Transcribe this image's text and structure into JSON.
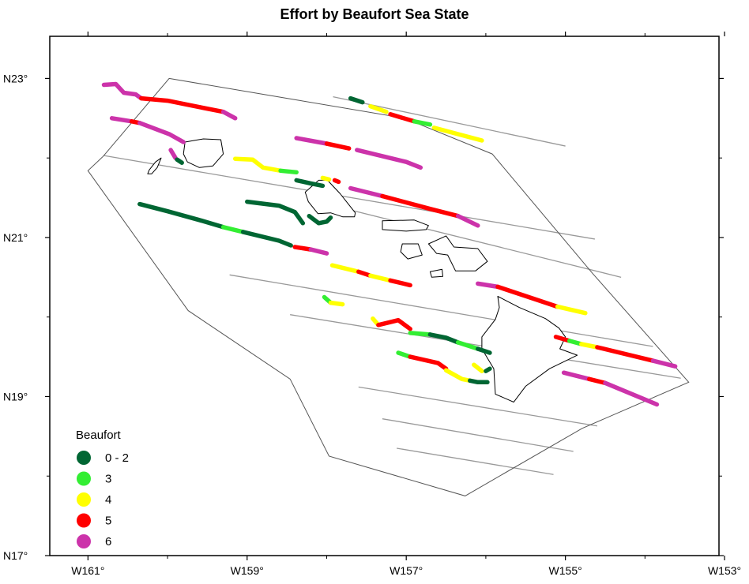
{
  "title": "Effort by Beaufort Sea State",
  "axes": {
    "x_ticks": [
      {
        "lon": -161,
        "label": "W161°"
      },
      {
        "lon": -159,
        "label": "W159°"
      },
      {
        "lon": -157,
        "label": "W157°"
      },
      {
        "lon": -155,
        "label": "W155°"
      },
      {
        "lon": -153,
        "label": "W153°"
      }
    ],
    "y_ticks": [
      {
        "lat": 23,
        "label": "N23°"
      },
      {
        "lat": 21,
        "label": "N21°"
      },
      {
        "lat": 19,
        "label": "N19°"
      },
      {
        "lat": 17,
        "label": "N17°"
      }
    ],
    "lon_range": [
      -161.48,
      -153.07
    ],
    "lat_range": [
      17,
      23.53
    ]
  },
  "legend": {
    "title": "Beaufort",
    "items": [
      {
        "label": "0 - 2",
        "color": "#006633"
      },
      {
        "label": "3",
        "color": "#33ee33"
      },
      {
        "label": "4",
        "color": "#ffff00"
      },
      {
        "label": "5",
        "color": "#ff0000"
      },
      {
        "label": "6",
        "color": "#cc33aa"
      }
    ]
  },
  "colors": {
    "frame": "#000000",
    "transect": "#999999",
    "coast": "#000000",
    "study_area": "#555555"
  },
  "study_area": [
    [
      -159.98,
      23.0
    ],
    [
      -157.02,
      22.5
    ],
    [
      -155.92,
      22.05
    ],
    [
      -154.66,
      20.55
    ],
    [
      -153.45,
      19.18
    ],
    [
      -154.79,
      18.6
    ],
    [
      -156.26,
      17.75
    ],
    [
      -157.97,
      18.25
    ],
    [
      -158.46,
      19.22
    ],
    [
      -159.74,
      20.08
    ],
    [
      -161.0,
      21.84
    ],
    [
      -160.81,
      22.02
    ]
  ],
  "transects": [
    [
      [
        -157.92,
        22.77
      ],
      [
        -155.0,
        22.15
      ]
    ],
    [
      [
        -160.8,
        22.03
      ],
      [
        -154.63,
        20.98
      ]
    ],
    [
      [
        -157.84,
        21.38
      ],
      [
        -154.3,
        20.5
      ]
    ],
    [
      [
        -159.22,
        20.53
      ],
      [
        -153.9,
        19.63
      ]
    ],
    [
      [
        -158.46,
        20.03
      ],
      [
        -153.55,
        19.23
      ]
    ],
    [
      [
        -157.6,
        19.12
      ],
      [
        -154.6,
        18.63
      ]
    ],
    [
      [
        -157.3,
        18.72
      ],
      [
        -154.9,
        18.31
      ]
    ],
    [
      [
        -157.12,
        18.35
      ],
      [
        -155.15,
        18.02
      ]
    ]
  ],
  "islands": [
    {
      "name": "Niihau",
      "points": [
        [
          -160.23,
          21.85
        ],
        [
          -160.15,
          21.95
        ],
        [
          -160.08,
          22.0
        ],
        [
          -160.13,
          21.88
        ],
        [
          -160.2,
          21.8
        ],
        [
          -160.25,
          21.8
        ]
      ]
    },
    {
      "name": "Kauai",
      "points": [
        [
          -159.78,
          22.2
        ],
        [
          -159.55,
          22.24
        ],
        [
          -159.33,
          22.23
        ],
        [
          -159.3,
          22.05
        ],
        [
          -159.43,
          21.9
        ],
        [
          -159.6,
          21.88
        ],
        [
          -159.75,
          21.95
        ],
        [
          -159.8,
          22.05
        ]
      ]
    },
    {
      "name": "Oahu",
      "points": [
        [
          -158.27,
          21.57
        ],
        [
          -158.1,
          21.72
        ],
        [
          -157.99,
          21.72
        ],
        [
          -157.83,
          21.55
        ],
        [
          -157.64,
          21.31
        ],
        [
          -157.65,
          21.26
        ],
        [
          -157.8,
          21.26
        ],
        [
          -157.95,
          21.31
        ],
        [
          -158.11,
          21.3
        ],
        [
          -158.23,
          21.45
        ]
      ]
    },
    {
      "name": "Molokai",
      "points": [
        [
          -157.3,
          21.21
        ],
        [
          -156.9,
          21.22
        ],
        [
          -156.72,
          21.15
        ],
        [
          -156.75,
          21.1
        ],
        [
          -157.0,
          21.08
        ],
        [
          -157.3,
          21.1
        ]
      ]
    },
    {
      "name": "Lanai",
      "points": [
        [
          -157.05,
          20.92
        ],
        [
          -156.85,
          20.92
        ],
        [
          -156.8,
          20.78
        ],
        [
          -156.98,
          20.73
        ],
        [
          -157.07,
          20.82
        ]
      ]
    },
    {
      "name": "Maui",
      "points": [
        [
          -156.72,
          20.92
        ],
        [
          -156.5,
          21.02
        ],
        [
          -156.4,
          20.88
        ],
        [
          -156.1,
          20.86
        ],
        [
          -155.98,
          20.7
        ],
        [
          -156.13,
          20.58
        ],
        [
          -156.38,
          20.58
        ],
        [
          -156.48,
          20.78
        ],
        [
          -156.62,
          20.8
        ]
      ]
    },
    {
      "name": "Kahoolawe",
      "points": [
        [
          -156.7,
          20.57
        ],
        [
          -156.55,
          20.6
        ],
        [
          -156.54,
          20.51
        ],
        [
          -156.68,
          20.5
        ]
      ]
    },
    {
      "name": "Hawaii",
      "points": [
        [
          -155.85,
          20.26
        ],
        [
          -155.58,
          20.12
        ],
        [
          -155.25,
          19.98
        ],
        [
          -155.08,
          19.86
        ],
        [
          -155.0,
          19.75
        ],
        [
          -155.07,
          19.6
        ],
        [
          -154.85,
          19.52
        ],
        [
          -155.2,
          19.35
        ],
        [
          -155.5,
          19.13
        ],
        [
          -155.65,
          18.93
        ],
        [
          -155.88,
          19.03
        ],
        [
          -155.9,
          19.35
        ],
        [
          -156.05,
          19.6
        ],
        [
          -156.05,
          19.75
        ],
        [
          -155.88,
          19.97
        ],
        [
          -155.83,
          20.12
        ]
      ]
    }
  ],
  "effort_tracks": [
    {
      "beaufort": "6",
      "points": [
        [
          -160.8,
          22.92
        ],
        [
          -160.65,
          22.93
        ],
        [
          -160.55,
          22.82
        ],
        [
          -160.4,
          22.8
        ],
        [
          -160.33,
          22.75
        ]
      ]
    },
    {
      "beaufort": "5",
      "points": [
        [
          -160.33,
          22.75
        ],
        [
          -160.0,
          22.72
        ],
        [
          -159.6,
          22.64
        ],
        [
          -159.3,
          22.58
        ]
      ]
    },
    {
      "beaufort": "6",
      "points": [
        [
          -159.3,
          22.58
        ],
        [
          -159.15,
          22.5
        ]
      ]
    },
    {
      "beaufort": "6",
      "points": [
        [
          -160.7,
          22.5
        ],
        [
          -160.45,
          22.46
        ]
      ]
    },
    {
      "beaufort": "5",
      "points": [
        [
          -160.45,
          22.46
        ],
        [
          -160.35,
          22.44
        ]
      ]
    },
    {
      "beaufort": "6",
      "points": [
        [
          -160.35,
          22.44
        ],
        [
          -159.98,
          22.3
        ],
        [
          -159.8,
          22.2
        ]
      ]
    },
    {
      "beaufort": "6",
      "points": [
        [
          -159.96,
          22.1
        ],
        [
          -159.9,
          22.0
        ]
      ]
    },
    {
      "beaufort": "0 - 2",
      "points": [
        [
          -159.88,
          21.98
        ],
        [
          -159.82,
          21.94
        ]
      ]
    },
    {
      "beaufort": "4",
      "points": [
        [
          -159.15,
          21.99
        ],
        [
          -158.93,
          21.98
        ],
        [
          -158.8,
          21.88
        ],
        [
          -158.58,
          21.84
        ]
      ]
    },
    {
      "beaufort": "3",
      "points": [
        [
          -158.58,
          21.84
        ],
        [
          -158.38,
          21.82
        ]
      ]
    },
    {
      "beaufort": "0 - 2",
      "points": [
        [
          -158.38,
          21.72
        ],
        [
          -158.2,
          21.68
        ],
        [
          -158.05,
          21.65
        ]
      ]
    },
    {
      "beaufort": "4",
      "points": [
        [
          -158.05,
          21.75
        ],
        [
          -157.97,
          21.73
        ]
      ]
    },
    {
      "beaufort": "5",
      "points": [
        [
          -157.9,
          21.72
        ],
        [
          -157.85,
          21.7
        ]
      ]
    },
    {
      "beaufort": "0 - 2",
      "points": [
        [
          -159.0,
          21.45
        ],
        [
          -158.6,
          21.4
        ],
        [
          -158.4,
          21.32
        ],
        [
          -158.3,
          21.18
        ]
      ]
    },
    {
      "beaufort": "0 - 2",
      "points": [
        [
          -158.22,
          21.27
        ],
        [
          -158.1,
          21.18
        ],
        [
          -158.0,
          21.2
        ],
        [
          -157.95,
          21.25
        ]
      ]
    },
    {
      "beaufort": "0 - 2",
      "points": [
        [
          -157.7,
          22.75
        ],
        [
          -157.55,
          22.7
        ]
      ]
    },
    {
      "beaufort": "4",
      "points": [
        [
          -157.45,
          22.65
        ],
        [
          -157.25,
          22.58
        ]
      ]
    },
    {
      "beaufort": "5",
      "points": [
        [
          -157.2,
          22.55
        ],
        [
          -156.9,
          22.46
        ]
      ]
    },
    {
      "beaufort": "3",
      "points": [
        [
          -156.9,
          22.46
        ],
        [
          -156.7,
          22.42
        ]
      ]
    },
    {
      "beaufort": "4",
      "points": [
        [
          -156.65,
          22.38
        ],
        [
          -156.05,
          22.22
        ]
      ]
    },
    {
      "beaufort": "6",
      "points": [
        [
          -158.38,
          22.25
        ],
        [
          -158.0,
          22.18
        ]
      ]
    },
    {
      "beaufort": "5",
      "points": [
        [
          -158.0,
          22.18
        ],
        [
          -157.72,
          22.12
        ]
      ]
    },
    {
      "beaufort": "6",
      "points": [
        [
          -157.62,
          22.1
        ],
        [
          -157.0,
          21.95
        ],
        [
          -156.82,
          21.88
        ]
      ]
    },
    {
      "beaufort": "6",
      "points": [
        [
          -157.7,
          21.62
        ],
        [
          -157.3,
          21.52
        ]
      ]
    },
    {
      "beaufort": "5",
      "points": [
        [
          -157.3,
          21.52
        ],
        [
          -156.7,
          21.36
        ],
        [
          -156.35,
          21.27
        ]
      ]
    },
    {
      "beaufort": "6",
      "points": [
        [
          -156.35,
          21.27
        ],
        [
          -156.1,
          21.15
        ]
      ]
    },
    {
      "beaufort": "0 - 2",
      "points": [
        [
          -160.35,
          21.42
        ],
        [
          -160.0,
          21.33
        ],
        [
          -159.6,
          21.22
        ],
        [
          -159.3,
          21.13
        ]
      ]
    },
    {
      "beaufort": "3",
      "points": [
        [
          -159.3,
          21.13
        ],
        [
          -159.05,
          21.07
        ]
      ]
    },
    {
      "beaufort": "0 - 2",
      "points": [
        [
          -159.05,
          21.07
        ],
        [
          -158.6,
          20.96
        ],
        [
          -158.45,
          20.9
        ]
      ]
    },
    {
      "beaufort": "5",
      "points": [
        [
          -158.4,
          20.88
        ],
        [
          -158.2,
          20.85
        ]
      ]
    },
    {
      "beaufort": "6",
      "points": [
        [
          -158.2,
          20.85
        ],
        [
          -158.0,
          20.8
        ]
      ]
    },
    {
      "beaufort": "4",
      "points": [
        [
          -157.93,
          20.65
        ],
        [
          -157.6,
          20.57
        ]
      ]
    },
    {
      "beaufort": "5",
      "points": [
        [
          -157.6,
          20.57
        ],
        [
          -157.45,
          20.52
        ]
      ]
    },
    {
      "beaufort": "4",
      "points": [
        [
          -157.45,
          20.52
        ],
        [
          -157.2,
          20.46
        ]
      ]
    },
    {
      "beaufort": "5",
      "points": [
        [
          -157.2,
          20.46
        ],
        [
          -156.95,
          20.4
        ]
      ]
    },
    {
      "beaufort": "6",
      "points": [
        [
          -156.1,
          20.42
        ],
        [
          -155.85,
          20.38
        ]
      ]
    },
    {
      "beaufort": "5",
      "points": [
        [
          -155.85,
          20.38
        ],
        [
          -155.1,
          20.13
        ]
      ]
    },
    {
      "beaufort": "4",
      "points": [
        [
          -155.1,
          20.13
        ],
        [
          -154.75,
          20.05
        ]
      ]
    },
    {
      "beaufort": "3",
      "points": [
        [
          -158.03,
          20.25
        ],
        [
          -157.95,
          20.18
        ]
      ]
    },
    {
      "beaufort": "4",
      "points": [
        [
          -157.95,
          20.18
        ],
        [
          -157.8,
          20.16
        ]
      ]
    },
    {
      "beaufort": "4",
      "points": [
        [
          -157.42,
          19.98
        ],
        [
          -157.35,
          19.9
        ]
      ]
    },
    {
      "beaufort": "5",
      "points": [
        [
          -157.35,
          19.9
        ],
        [
          -157.1,
          19.96
        ],
        [
          -156.95,
          19.85
        ]
      ]
    },
    {
      "beaufort": "3",
      "points": [
        [
          -156.95,
          19.8
        ],
        [
          -156.7,
          19.78
        ]
      ]
    },
    {
      "beaufort": "0 - 2",
      "points": [
        [
          -156.7,
          19.78
        ],
        [
          -156.5,
          19.74
        ],
        [
          -156.35,
          19.68
        ]
      ]
    },
    {
      "beaufort": "3",
      "points": [
        [
          -156.35,
          19.68
        ],
        [
          -156.1,
          19.6
        ]
      ]
    },
    {
      "beaufort": "0 - 2",
      "points": [
        [
          -156.1,
          19.6
        ],
        [
          -155.95,
          19.55
        ]
      ]
    },
    {
      "beaufort": "5",
      "points": [
        [
          -155.12,
          19.75
        ],
        [
          -154.95,
          19.7
        ]
      ]
    },
    {
      "beaufort": "3",
      "points": [
        [
          -154.95,
          19.7
        ],
        [
          -154.8,
          19.66
        ]
      ]
    },
    {
      "beaufort": "4",
      "points": [
        [
          -154.8,
          19.66
        ],
        [
          -154.6,
          19.62
        ]
      ]
    },
    {
      "beaufort": "5",
      "points": [
        [
          -154.6,
          19.62
        ],
        [
          -153.9,
          19.45
        ]
      ]
    },
    {
      "beaufort": "6",
      "points": [
        [
          -153.9,
          19.45
        ],
        [
          -153.62,
          19.38
        ]
      ]
    },
    {
      "beaufort": "3",
      "points": [
        [
          -157.1,
          19.55
        ],
        [
          -156.95,
          19.5
        ]
      ]
    },
    {
      "beaufort": "5",
      "points": [
        [
          -156.95,
          19.5
        ],
        [
          -156.6,
          19.42
        ],
        [
          -156.5,
          19.35
        ]
      ]
    },
    {
      "beaufort": "4",
      "points": [
        [
          -156.5,
          19.33
        ],
        [
          -156.3,
          19.22
        ],
        [
          -156.2,
          19.2
        ]
      ]
    },
    {
      "beaufort": "0 - 2",
      "points": [
        [
          -156.2,
          19.2
        ],
        [
          -156.1,
          19.18
        ],
        [
          -155.98,
          19.18
        ]
      ]
    },
    {
      "beaufort": "4",
      "points": [
        [
          -156.15,
          19.4
        ],
        [
          -156.05,
          19.32
        ]
      ]
    },
    {
      "beaufort": "0 - 2",
      "points": [
        [
          -156.0,
          19.32
        ],
        [
          -155.95,
          19.35
        ]
      ]
    },
    {
      "beaufort": "6",
      "points": [
        [
          -155.02,
          19.3
        ],
        [
          -154.7,
          19.22
        ]
      ]
    },
    {
      "beaufort": "5",
      "points": [
        [
          -154.7,
          19.22
        ],
        [
          -154.5,
          19.17
        ]
      ]
    },
    {
      "beaufort": "6",
      "points": [
        [
          -154.5,
          19.17
        ],
        [
          -153.85,
          18.9
        ]
      ]
    }
  ]
}
